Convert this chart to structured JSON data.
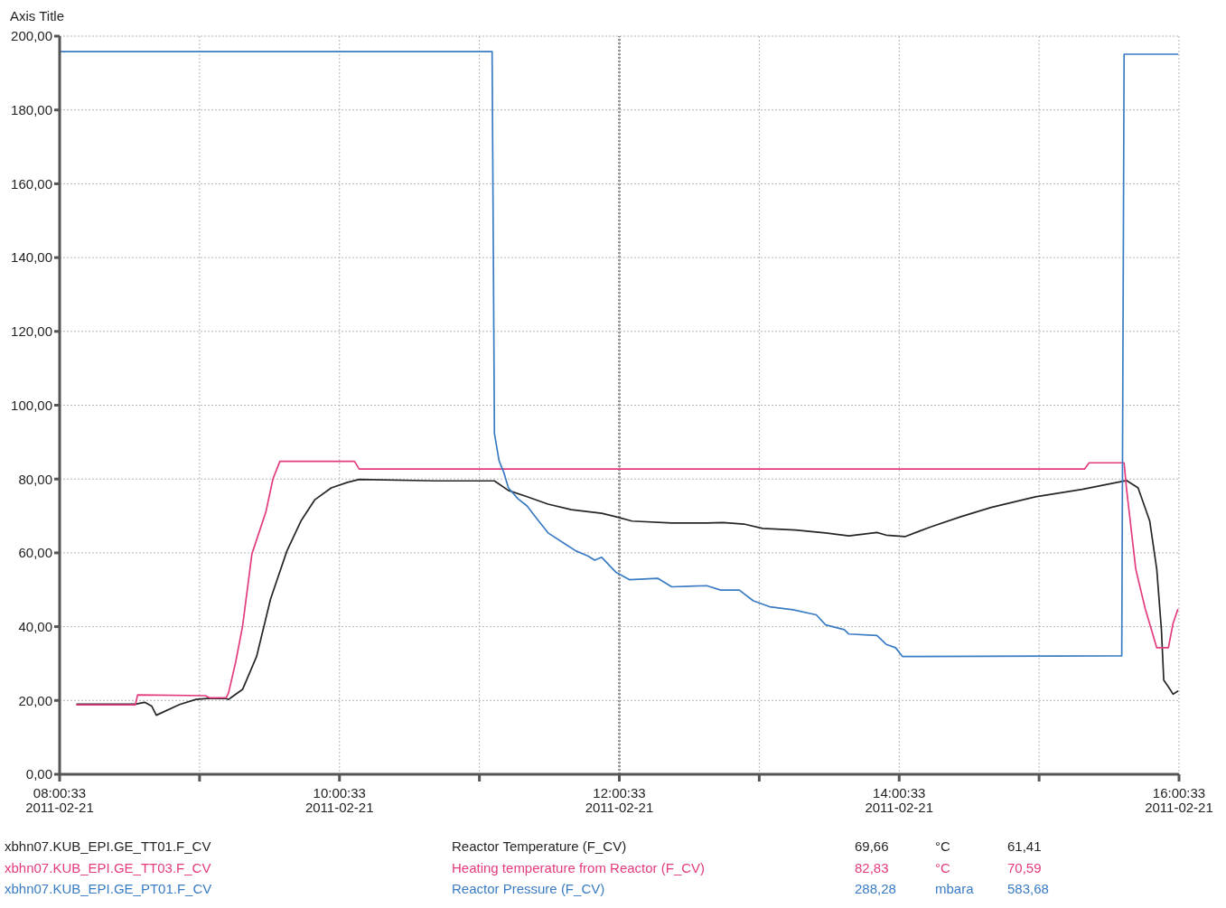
{
  "chart_data": {
    "type": "line",
    "ylabel": "Axis Title",
    "xlim": [
      "2011-02-21T08:00:33",
      "2011-02-21T16:00:33"
    ],
    "xticks": [
      {
        "value": "2011-02-21T08:00:33",
        "label": "08:00:33\n2011-02-21"
      },
      {
        "value": "2011-02-21T09:00:33",
        "label": null
      },
      {
        "value": "2011-02-21T10:00:33",
        "label": "10:00:33\n2011-02-21"
      },
      {
        "value": "2011-02-21T11:00:33",
        "label": null
      },
      {
        "value": "2011-02-21T12:00:33",
        "label": "12:00:33\n2011-02-21"
      },
      {
        "value": "2011-02-21T13:00:33",
        "label": null
      },
      {
        "value": "2011-02-21T14:00:33",
        "label": "14:00:33\n2011-02-21"
      },
      {
        "value": "2011-02-21T15:00:33",
        "label": null
      },
      {
        "value": "2011-02-21T16:00:33",
        "label": "16:00:33\n2011-02-21"
      }
    ],
    "ylim": [
      0,
      200
    ],
    "yticks": [
      {
        "value": 0,
        "label": "0,00"
      },
      {
        "value": 20,
        "label": "20,00"
      },
      {
        "value": 40,
        "label": "40,00"
      },
      {
        "value": 60,
        "label": "60,00"
      },
      {
        "value": 80,
        "label": "80,00"
      },
      {
        "value": 100,
        "label": "100,00"
      },
      {
        "value": 120,
        "label": "120,00"
      },
      {
        "value": 140,
        "label": "140,00"
      },
      {
        "value": 160,
        "label": "160,00"
      },
      {
        "value": 180,
        "label": "180,00"
      },
      {
        "value": 200,
        "label": "200,00"
      }
    ],
    "grid": true,
    "legend": "bottom",
    "marker": "none",
    "line_style": "solid",
    "ref_lines": [
      {
        "axis": "x",
        "value": "2011-02-21T12:00:33",
        "color": "#9a9a9a",
        "line_style": "dotted"
      }
    ],
    "series": [
      {
        "name": "Reactor Temperature (F_CV)",
        "color": "#262626",
        "x": [
          "2011-02-21T08:08",
          "2011-02-21T08:33",
          "2011-02-21T08:37",
          "2011-02-21T08:40",
          "2011-02-21T08:42",
          "2011-02-21T08:52",
          "2011-02-21T08:59",
          "2011-02-21T09:05",
          "2011-02-21T09:12",
          "2011-02-21T09:13",
          "2011-02-21T09:19",
          "2011-02-21T09:25",
          "2011-02-21T09:31",
          "2011-02-21T09:38",
          "2011-02-21T09:44",
          "2011-02-21T09:50",
          "2011-02-21T09:57",
          "2011-02-21T10:04",
          "2011-02-21T10:09",
          "2011-02-21T10:42",
          "2011-02-21T11:07",
          "2011-02-21T11:13",
          "2011-02-21T11:21",
          "2011-02-21T11:30",
          "2011-02-21T11:40",
          "2011-02-21T11:53",
          "2011-02-21T11:59",
          "2011-02-21T12:06",
          "2011-02-21T12:23",
          "2011-02-21T12:38",
          "2011-02-21T12:45",
          "2011-02-21T12:54",
          "2011-02-21T13:02",
          "2011-02-21T13:16",
          "2011-02-21T13:29",
          "2011-02-21T13:39",
          "2011-02-21T13:51",
          "2011-02-21T13:55",
          "2011-02-21T14:03",
          "2011-02-21T14:14",
          "2011-02-21T14:27",
          "2011-02-21T14:40",
          "2011-02-21T14:59",
          "2011-02-21T15:19",
          "2011-02-21T15:38",
          "2011-02-21T15:43",
          "2011-02-21T15:48",
          "2011-02-21T15:51",
          "2011-02-21T15:53",
          "2011-02-21T15:54",
          "2011-02-21T15:56",
          "2011-02-21T15:58",
          "2011-02-21T16:00"
        ],
        "values": [
          19.0,
          19.0,
          19.5,
          18.5,
          16.0,
          18.9,
          20.3,
          20.6,
          20.5,
          20.3,
          23.0,
          31.9,
          47.5,
          60.5,
          68.6,
          74.4,
          77.6,
          79.1,
          79.9,
          79.5,
          79.5,
          76.9,
          75.2,
          73.2,
          71.7,
          70.7,
          69.8,
          68.6,
          68.1,
          68.1,
          68.2,
          67.8,
          66.6,
          66.2,
          65.4,
          64.6,
          65.5,
          64.8,
          64.4,
          67.0,
          69.8,
          72.3,
          75.2,
          77.2,
          79.6,
          77.6,
          68.6,
          55.6,
          39.2,
          25.5,
          23.7,
          21.7,
          22.5
        ]
      },
      {
        "name": "Heating temperature from Reactor (F_CV)",
        "color": "#e23b7e",
        "x": [
          "2011-02-21T08:08",
          "2011-02-21T08:33",
          "2011-02-21T08:34",
          "2011-02-21T09:03",
          "2011-02-21T09:05",
          "2011-02-21T09:12",
          "2011-02-21T09:13",
          "2011-02-21T09:16",
          "2011-02-21T09:19",
          "2011-02-21T09:23",
          "2011-02-21T09:29",
          "2011-02-21T09:32",
          "2011-02-21T09:35",
          "2011-02-21T10:07",
          "2011-02-21T10:09",
          "2011-02-21T15:20",
          "2011-02-21T15:22",
          "2011-02-21T15:37",
          "2011-02-21T15:38",
          "2011-02-21T15:42",
          "2011-02-21T15:46",
          "2011-02-21T15:51",
          "2011-02-21T15:56",
          "2011-02-21T15:58",
          "2011-02-21T16:00"
        ],
        "values": [
          18.8,
          18.8,
          21.5,
          21.3,
          20.7,
          20.8,
          22.1,
          30.3,
          40.1,
          59.7,
          71.1,
          80.0,
          84.8,
          84.8,
          82.7,
          82.7,
          84.4,
          84.4,
          77.6,
          55.6,
          45.0,
          34.3,
          34.3,
          40.9,
          44.6
        ]
      },
      {
        "name": "Reactor Pressure (F_CV)",
        "color": "#3a7cc3",
        "x": [
          "2011-02-21T08:01",
          "2011-02-21T11:06",
          "2011-02-21T11:07",
          "2011-02-21T11:09",
          "2011-02-21T11:11",
          "2011-02-21T11:13",
          "2011-02-21T11:17",
          "2011-02-21T11:21",
          "2011-02-21T11:25",
          "2011-02-21T11:30",
          "2011-02-21T11:38",
          "2011-02-21T11:42",
          "2011-02-21T11:47",
          "2011-02-21T11:50",
          "2011-02-21T11:53",
          "2011-02-21T11:59",
          "2011-02-21T12:05",
          "2011-02-21T12:17",
          "2011-02-21T12:23",
          "2011-02-21T12:38",
          "2011-02-21T12:44",
          "2011-02-21T12:52",
          "2011-02-21T12:58",
          "2011-02-21T13:05",
          "2011-02-21T13:15",
          "2011-02-21T13:25",
          "2011-02-21T13:29",
          "2011-02-21T13:37",
          "2011-02-21T13:39",
          "2011-02-21T13:51",
          "2011-02-21T13:55",
          "2011-02-21T13:59",
          "2011-02-21T14:02",
          "2011-02-21T15:36",
          "2011-02-21T15:37",
          "2011-02-21T16:00"
        ],
        "values": [
          195.8,
          195.8,
          92.3,
          84.9,
          81.8,
          77.6,
          74.7,
          72.7,
          69.4,
          65.4,
          62.1,
          60.5,
          59.2,
          58.0,
          58.8,
          54.8,
          52.7,
          53.1,
          50.8,
          51.1,
          49.9,
          49.9,
          47.0,
          45.4,
          44.6,
          43.2,
          40.5,
          39.2,
          38.0,
          37.6,
          35.2,
          34.3,
          31.9,
          32.1,
          195.1,
          195.1
        ]
      }
    ],
    "annotations": [
      "xbhn07.KUB_EPI.GE_TT01.F_CV",
      "69,66",
      "°C",
      "61,41",
      "xbhn07.KUB_EPI.GE_TT03.F_CV",
      "82,83",
      "°C",
      "70,59",
      "xbhn07.KUB_EPI.GE_PT01.F_CV",
      "288,28",
      "mbara",
      "583,68"
    ]
  }
}
